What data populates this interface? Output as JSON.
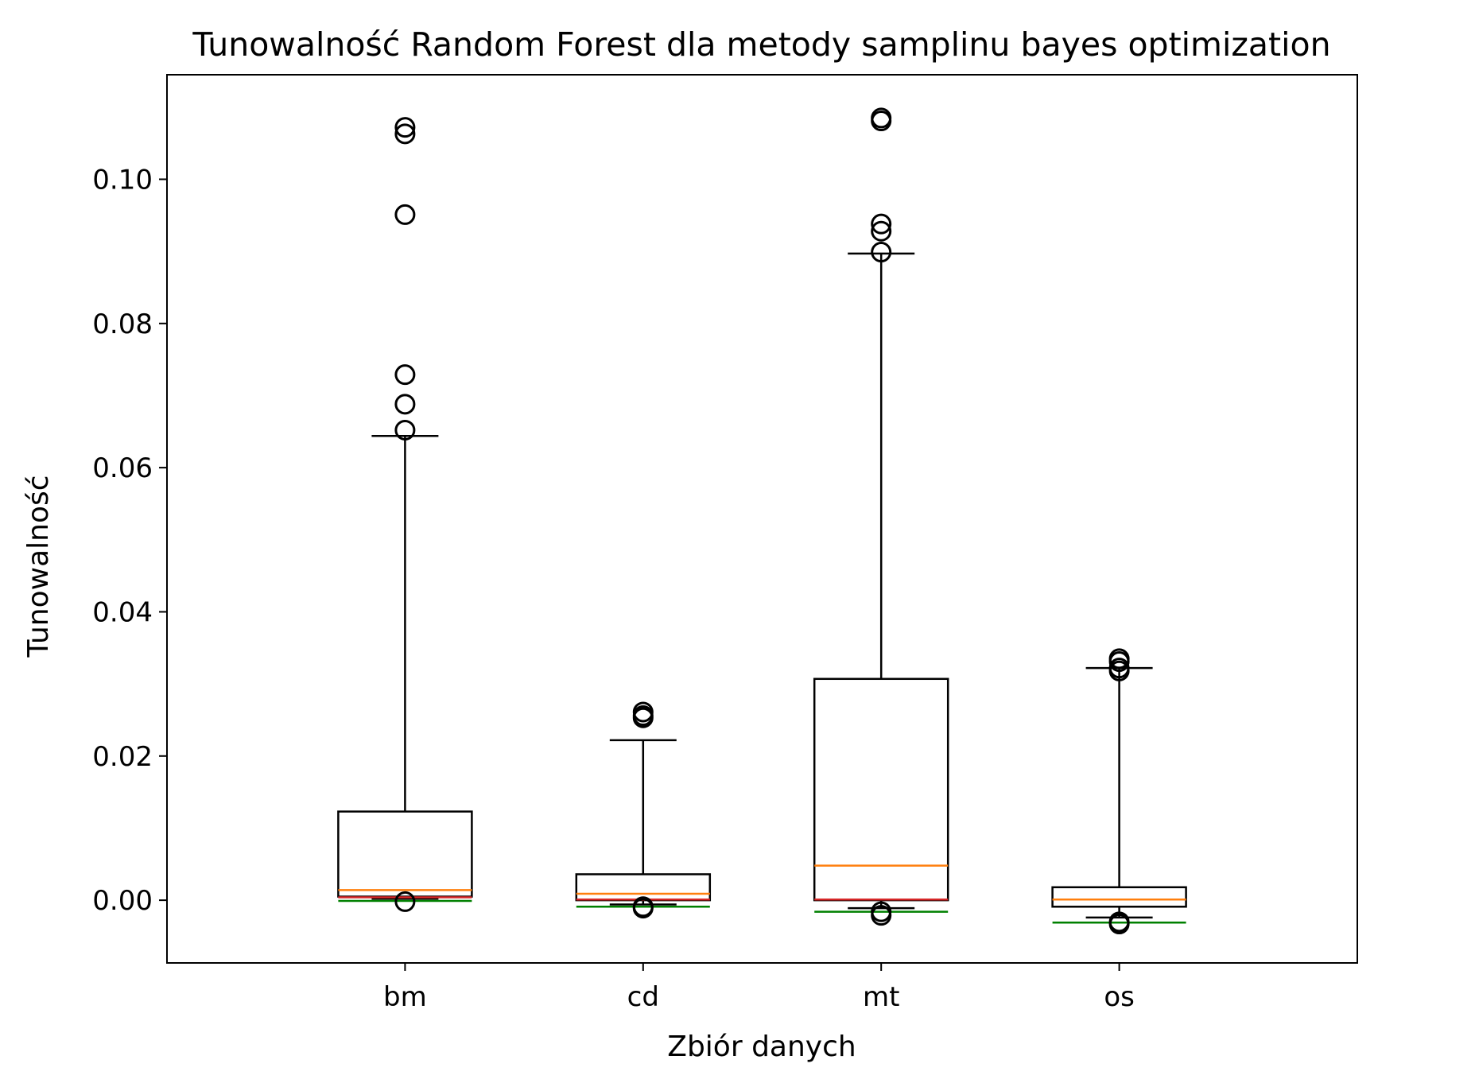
{
  "chart_data": {
    "type": "box",
    "title": "Tunowalność Random Forest dla metody samplinu bayes optimization",
    "xlabel": "Zbiór danych",
    "ylabel": "Tunowalność",
    "categories": [
      "bm",
      "cd",
      "mt",
      "os"
    ],
    "ylim": [
      -0.0087,
      0.1145
    ],
    "yticks": [
      0.0,
      0.02,
      0.04,
      0.06,
      0.08,
      0.1
    ],
    "ytick_labels": [
      "0.00",
      "0.02",
      "0.04",
      "0.06",
      "0.08",
      "0.10"
    ],
    "grid": false,
    "boxes": [
      {
        "category": "bm",
        "whislo": 0.0002,
        "q1": 0.0005,
        "median": 0.0014,
        "q3": 0.0123,
        "whishi": 0.0644,
        "red_line": 0.0004,
        "green_line": -0.0001,
        "fliers": [
          -0.0002,
          0.0652,
          0.0688,
          0.0729,
          0.0951,
          0.1063,
          0.1072
        ]
      },
      {
        "category": "cd",
        "whislo": -0.0006,
        "q1": 0.0,
        "median": 0.0009,
        "q3": 0.0036,
        "whishi": 0.0222,
        "red_line": 0.0001,
        "green_line": -0.0009,
        "fliers": [
          -0.0011,
          -0.0009,
          0.0253,
          0.0256,
          0.0261
        ]
      },
      {
        "category": "mt",
        "whislo": -0.0011,
        "q1": 0.0,
        "median": 0.0048,
        "q3": 0.0307,
        "whishi": 0.0897,
        "red_line": 0.0001,
        "green_line": -0.0016,
        "fliers": [
          -0.0021,
          -0.0016,
          0.0899,
          0.0928,
          0.0938,
          0.1081,
          0.1085
        ]
      },
      {
        "category": "os",
        "whislo": -0.0024,
        "q1": -0.0009,
        "median": 0.0001,
        "q3": 0.0018,
        "whishi": 0.0322,
        "red_line": 0.0001,
        "green_line": -0.0031,
        "fliers": [
          -0.0033,
          -0.003,
          0.0318,
          0.0322,
          0.0331,
          0.0335
        ]
      }
    ],
    "colors": {
      "box": "#000000",
      "median": "#ff7f0e",
      "red_line": "#d62728",
      "green_line": "#008000",
      "flier": "#000000"
    }
  }
}
